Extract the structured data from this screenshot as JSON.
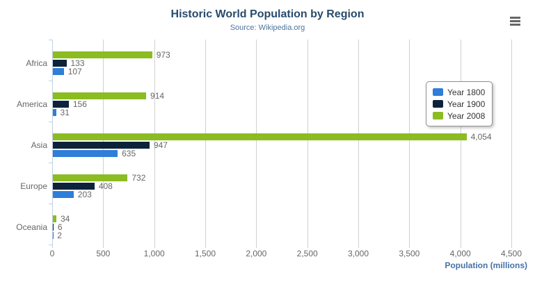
{
  "header": {
    "menu_icon": "hamburger-export-menu"
  },
  "chart_data": {
    "type": "bar",
    "title": "Historic World Population by Region",
    "subtitle": "Source: Wikipedia.org",
    "categories": [
      "Africa",
      "America",
      "Asia",
      "Europe",
      "Oceania"
    ],
    "series": [
      {
        "name": "Year 1800",
        "color": "#2f7ed8",
        "values": [
          107,
          31,
          635,
          203,
          2
        ]
      },
      {
        "name": "Year 1900",
        "color": "#0d233a",
        "values": [
          133,
          156,
          947,
          408,
          6
        ]
      },
      {
        "name": "Year 2008",
        "color": "#8bbc21",
        "values": [
          973,
          914,
          4054,
          732,
          34
        ]
      }
    ],
    "bar_order_top_to_bottom": [
      "Year 2008",
      "Year 1900",
      "Year 1800"
    ],
    "xlabel": "Population (millions)",
    "xlim": [
      0,
      4500
    ],
    "x_tick_step": 500,
    "x_tick_labels": [
      "0",
      "500",
      "1,000",
      "1,500",
      "2,000",
      "2,500",
      "3,000",
      "3,500",
      "4,000",
      "4,500"
    ],
    "grid": true,
    "legend_position": "right",
    "data_label_format": "thousands-comma"
  },
  "colors": {
    "title": "#274b6d",
    "subtitle": "#4d759e",
    "axis_label": "#666666",
    "data_label": "#666666",
    "axis_title": "#4572a7",
    "gridline": "#d0d0d0",
    "category_axis_line": "#c0d0e0",
    "legend_border": "#909090",
    "legend_text": "#333333",
    "menu_icon": "#666666",
    "background": "#ffffff"
  }
}
